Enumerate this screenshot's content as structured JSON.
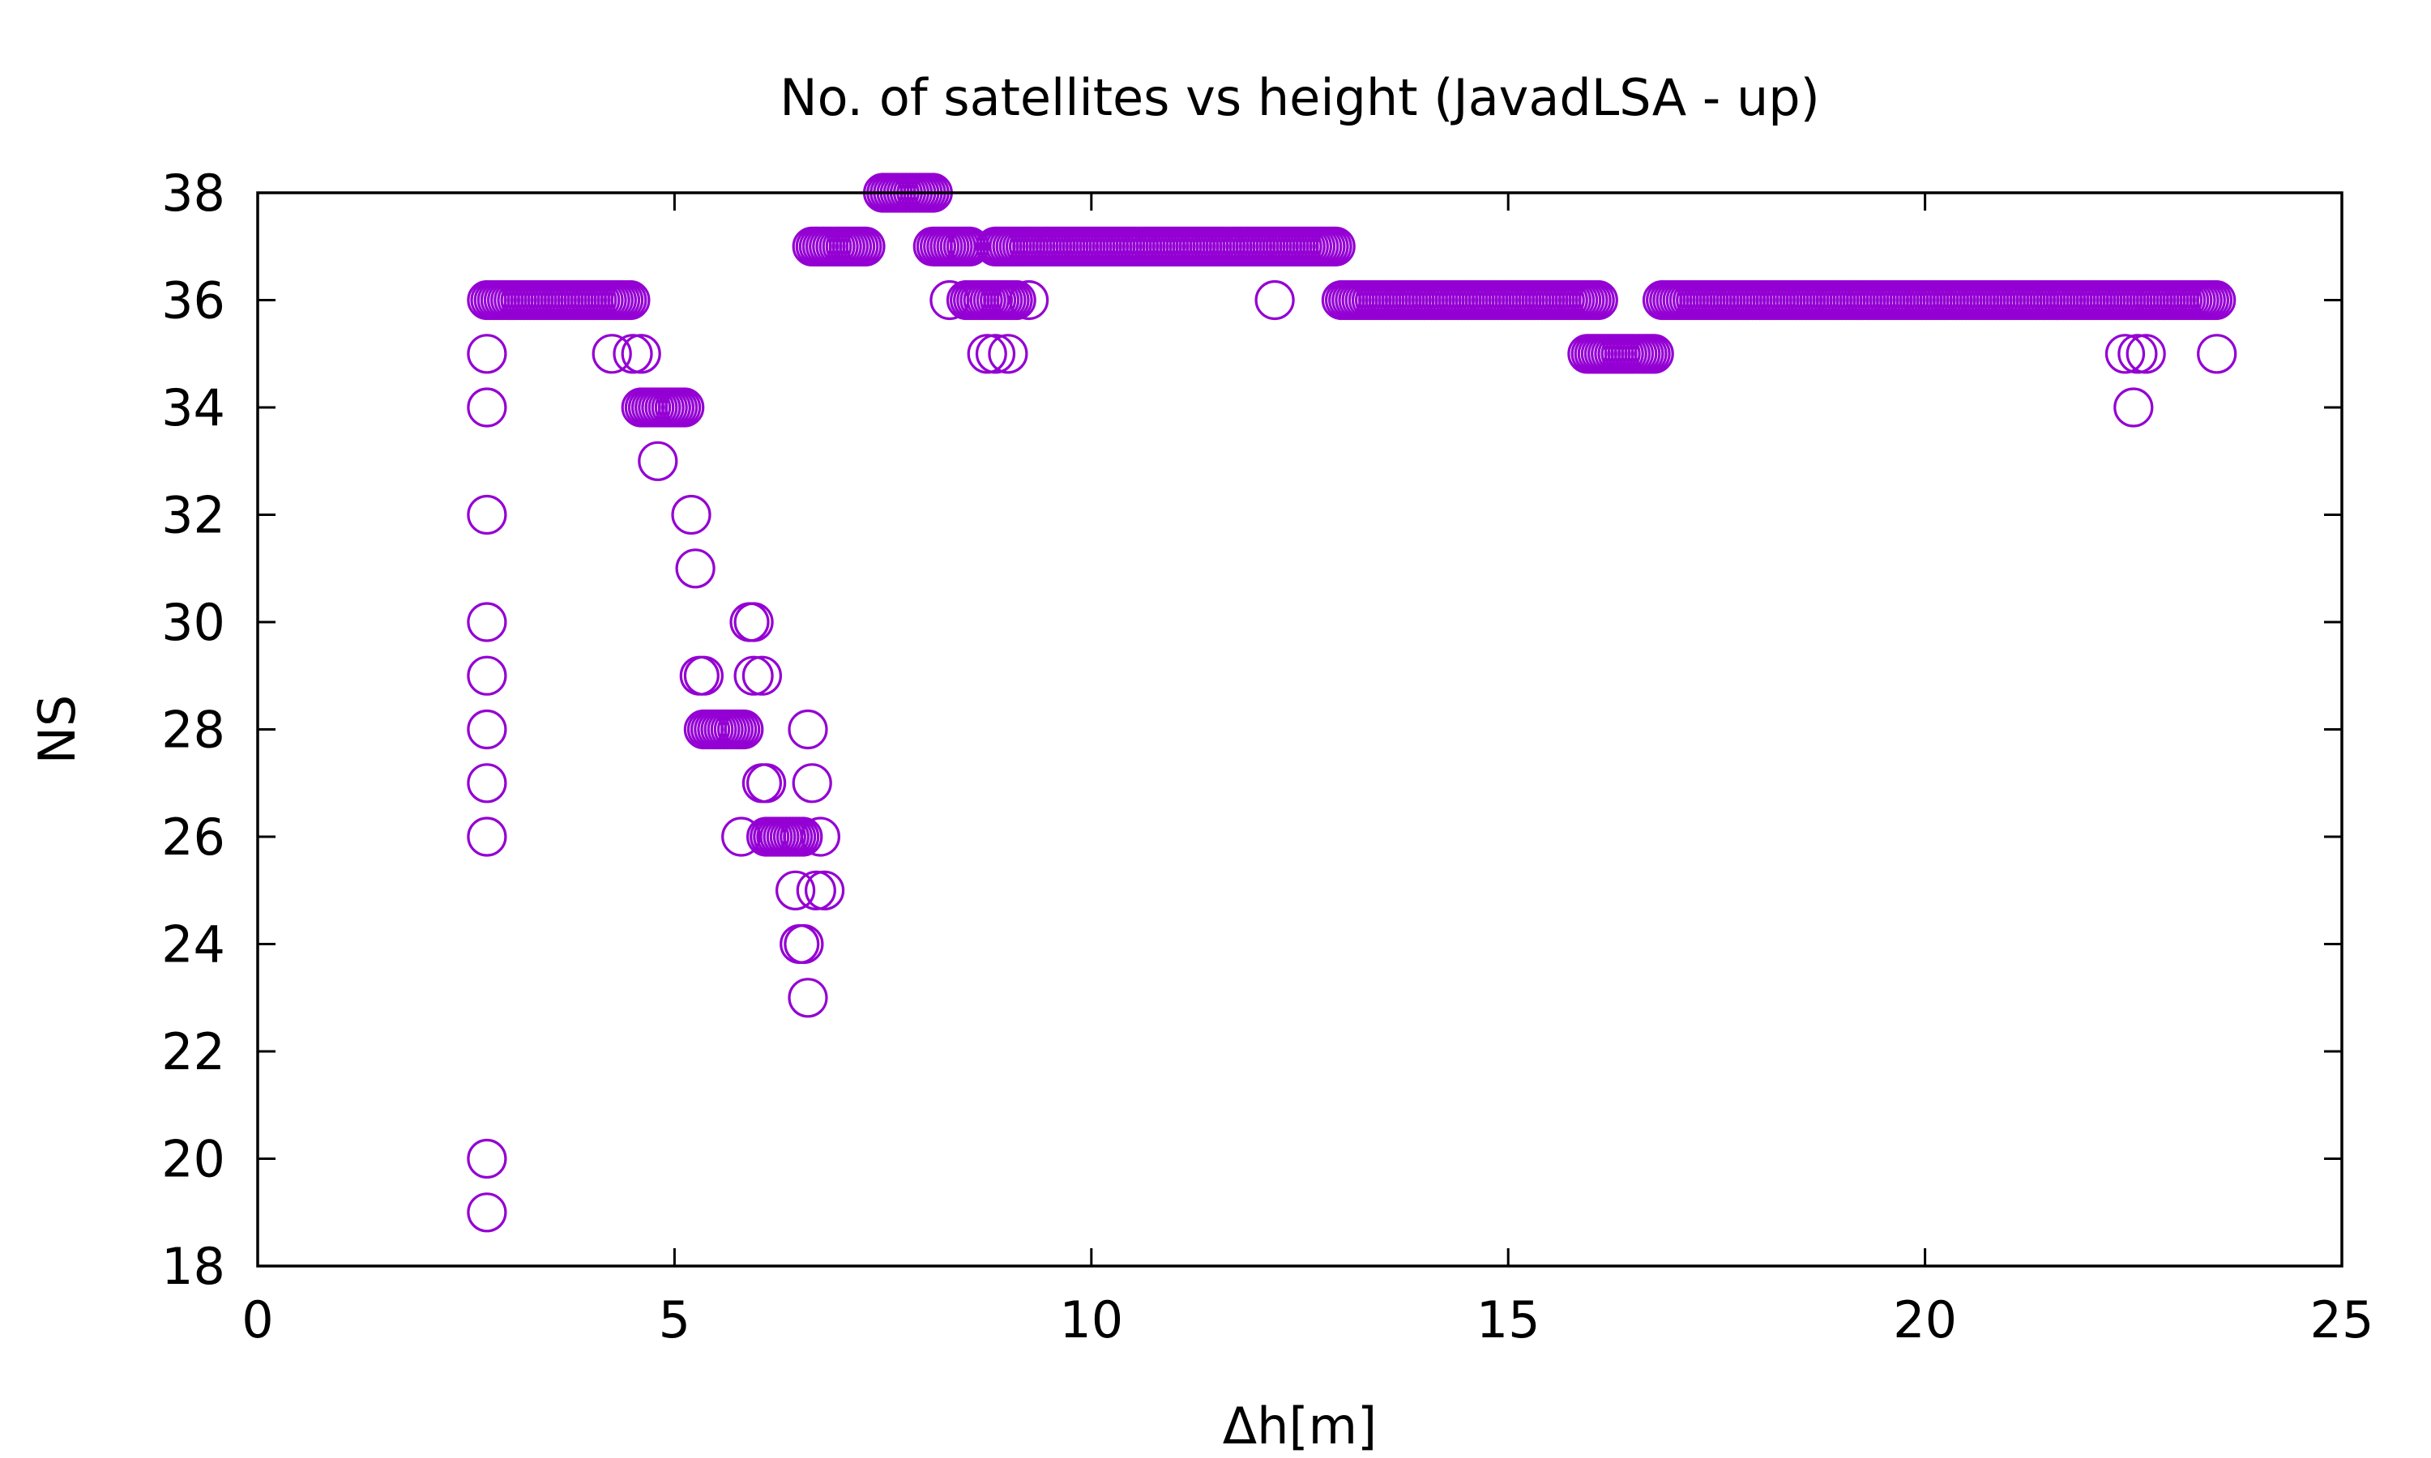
{
  "chart_data": {
    "type": "scatter",
    "title": "No. of satellites vs height (JavadLSA - up)",
    "xlabel": "Δh[m]",
    "ylabel": "NS",
    "xlim": [
      0,
      25
    ],
    "ylim": [
      18,
      38
    ],
    "xticks": [
      0,
      5,
      10,
      15,
      20,
      25
    ],
    "yticks": [
      18,
      20,
      22,
      24,
      26,
      28,
      30,
      32,
      34,
      36,
      38
    ],
    "marker": "open-circle",
    "color": "#9400d3",
    "grid": false,
    "legend": "none",
    "series": [
      {
        "points": [
          [
            2.75,
            19
          ],
          [
            2.75,
            20
          ],
          [
            2.75,
            26
          ],
          [
            2.75,
            27
          ],
          [
            2.75,
            28
          ],
          [
            2.75,
            29
          ],
          [
            2.75,
            30
          ],
          [
            2.75,
            32
          ],
          [
            2.75,
            34
          ],
          [
            2.75,
            35
          ],
          [
            4.25,
            35
          ],
          [
            4.5,
            35
          ],
          [
            4.6,
            35
          ],
          [
            4.8,
            33
          ],
          [
            5.2,
            32
          ],
          [
            5.25,
            31
          ],
          [
            5.3,
            29
          ],
          [
            5.35,
            29
          ],
          [
            5.8,
            26
          ],
          [
            5.9,
            30
          ],
          [
            5.95,
            30
          ],
          [
            5.95,
            29
          ],
          [
            6.05,
            29
          ],
          [
            6.05,
            27
          ],
          [
            6.1,
            27
          ],
          [
            6.45,
            25
          ],
          [
            6.5,
            24
          ],
          [
            6.55,
            24
          ],
          [
            6.6,
            23
          ],
          [
            6.6,
            28
          ],
          [
            6.65,
            27
          ],
          [
            6.7,
            25
          ],
          [
            6.75,
            26
          ],
          [
            6.8,
            25
          ],
          [
            8.3,
            36
          ],
          [
            8.75,
            35
          ],
          [
            8.85,
            35
          ],
          [
            9.0,
            35
          ],
          [
            9.25,
            36
          ],
          [
            12.2,
            36
          ],
          [
            22.4,
            35
          ],
          [
            22.5,
            34
          ],
          [
            22.55,
            35
          ],
          [
            22.65,
            35
          ],
          [
            23.5,
            35
          ]
        ],
        "runs": [
          {
            "y": 36,
            "x_from": 2.75,
            "x_to": 4.5
          },
          {
            "y": 34,
            "x_from": 4.6,
            "x_to": 5.15
          },
          {
            "y": 28,
            "x_from": 5.35,
            "x_to": 5.85
          },
          {
            "y": 26,
            "x_from": 6.1,
            "x_to": 6.55
          },
          {
            "y": 37,
            "x_from": 6.65,
            "x_to": 7.3
          },
          {
            "y": 38,
            "x_from": 7.5,
            "x_to": 8.1
          },
          {
            "y": 37,
            "x_from": 8.1,
            "x_to": 8.55
          },
          {
            "y": 36,
            "x_from": 8.5,
            "x_to": 9.1
          },
          {
            "y": 37,
            "x_from": 8.85,
            "x_to": 12.95
          },
          {
            "y": 36,
            "x_from": 13.0,
            "x_to": 16.1
          },
          {
            "y": 35,
            "x_from": 15.95,
            "x_to": 16.75
          },
          {
            "y": 36,
            "x_from": 16.85,
            "x_to": 23.5
          }
        ]
      }
    ]
  }
}
